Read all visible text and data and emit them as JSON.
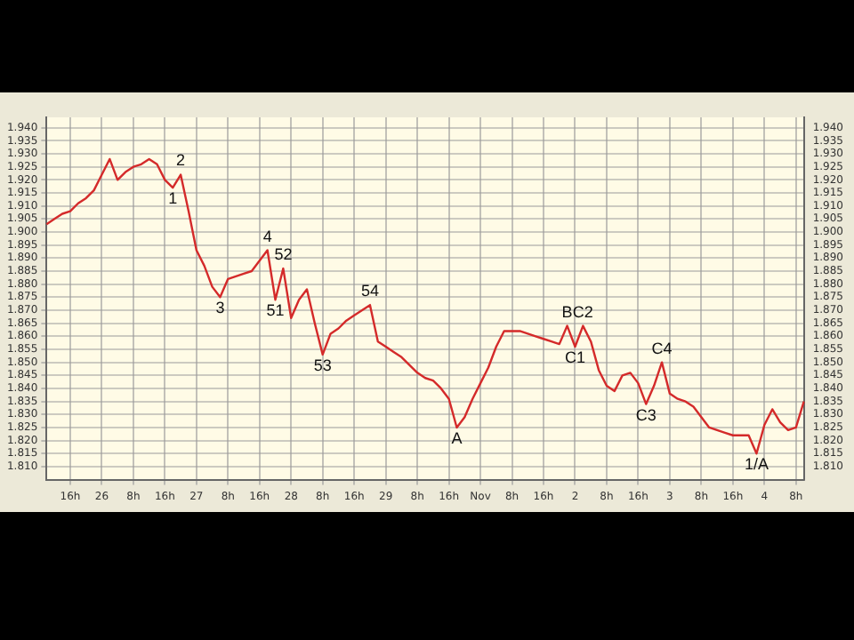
{
  "chart_data": {
    "type": "line",
    "categories": [
      null,
      null,
      null,
      "16h",
      null,
      null,
      null,
      "26",
      null,
      null,
      null,
      "8h",
      null,
      null,
      null,
      "16h",
      null,
      null,
      null,
      "27",
      null,
      null,
      null,
      "8h",
      null,
      null,
      null,
      "16h",
      null,
      null,
      null,
      "28",
      null,
      null,
      null,
      "8h",
      null,
      null,
      null,
      "16h",
      null,
      null,
      null,
      "29",
      null,
      null,
      null,
      "8h",
      null,
      null,
      null,
      "16h",
      null,
      null,
      null,
      "Nov",
      null,
      null,
      null,
      "8h",
      null,
      null,
      null,
      "16h",
      null,
      null,
      null,
      "2",
      null,
      null,
      null,
      "8h",
      null,
      null,
      null,
      "16h",
      null,
      null,
      null,
      "3",
      null,
      null,
      null,
      "8h",
      null,
      null,
      null,
      "16h",
      null,
      null,
      null,
      "4",
      null,
      null,
      null,
      "8h",
      null
    ],
    "series": [
      {
        "color": "#d42a2a",
        "values": [
          1.903,
          1.905,
          1.907,
          1.908,
          1.911,
          1.913,
          1.916,
          1.922,
          1.928,
          1.92,
          1.923,
          1.925,
          1.926,
          1.928,
          1.926,
          1.92,
          1.917,
          1.922,
          1.908,
          1.893,
          1.887,
          1.879,
          1.875,
          1.882,
          1.883,
          1.884,
          1.885,
          1.889,
          1.893,
          1.874,
          1.886,
          1.867,
          1.874,
          1.878,
          1.865,
          1.853,
          1.861,
          1.863,
          1.866,
          1.868,
          1.87,
          1.872,
          1.858,
          1.856,
          1.854,
          1.852,
          1.849,
          1.846,
          1.844,
          1.843,
          1.84,
          1.836,
          1.825,
          1.829,
          1.836,
          1.842,
          1.848,
          1.856,
          1.862,
          1.862,
          1.862,
          1.861,
          1.86,
          1.859,
          1.858,
          1.857,
          1.864,
          1.856,
          1.864,
          1.858,
          1.847,
          1.841,
          1.839,
          1.845,
          1.846,
          1.842,
          1.834,
          1.841,
          1.85,
          1.838,
          1.836,
          1.835,
          1.833,
          1.829,
          1.825,
          1.824,
          1.823,
          1.822,
          1.822,
          1.822,
          1.815,
          1.826,
          1.832,
          1.827,
          1.824,
          1.825,
          1.835
        ]
      }
    ],
    "ylim": [
      1.805,
      1.944
    ],
    "yticks": [
      {
        "value": 1.94,
        "label": "1.940"
      },
      {
        "value": 1.935,
        "label": "1.935"
      },
      {
        "value": 1.93,
        "label": "1.930"
      },
      {
        "value": 1.925,
        "label": "1.925"
      },
      {
        "value": 1.92,
        "label": "1.920"
      },
      {
        "value": 1.915,
        "label": "1.915"
      },
      {
        "value": 1.91,
        "label": "1.910"
      },
      {
        "value": 1.905,
        "label": "1.905"
      },
      {
        "value": 1.9,
        "label": "1.900"
      },
      {
        "value": 1.895,
        "label": "1.895"
      },
      {
        "value": 1.89,
        "label": "1.890"
      },
      {
        "value": 1.885,
        "label": "1.885"
      },
      {
        "value": 1.88,
        "label": "1.880"
      },
      {
        "value": 1.875,
        "label": "1.875"
      },
      {
        "value": 1.87,
        "label": "1.870"
      },
      {
        "value": 1.865,
        "label": "1.865"
      },
      {
        "value": 1.86,
        "label": "1.860"
      },
      {
        "value": 1.855,
        "label": "1.855"
      },
      {
        "value": 1.85,
        "label": "1.850"
      },
      {
        "value": 1.845,
        "label": "1.845"
      },
      {
        "value": 1.84,
        "label": "1.840"
      },
      {
        "value": 1.835,
        "label": "1.835"
      },
      {
        "value": 1.83,
        "label": "1.830"
      },
      {
        "value": 1.825,
        "label": "1.825"
      },
      {
        "value": 1.82,
        "label": "1.820"
      },
      {
        "value": 1.815,
        "label": "1.815"
      },
      {
        "value": 1.81,
        "label": "1.810"
      }
    ],
    "y2lim": [
      1.805,
      1.944
    ],
    "y2ticks": [
      {
        "value": 1.94,
        "label": "1.940"
      },
      {
        "value": 1.935,
        "label": "1.935"
      },
      {
        "value": 1.93,
        "label": "1.930"
      },
      {
        "value": 1.925,
        "label": "1.925"
      },
      {
        "value": 1.92,
        "label": "1.920"
      },
      {
        "value": 1.915,
        "label": "1.915"
      },
      {
        "value": 1.91,
        "label": "1.910"
      },
      {
        "value": 1.905,
        "label": "1.905"
      },
      {
        "value": 1.9,
        "label": "1.900"
      },
      {
        "value": 1.895,
        "label": "1.895"
      },
      {
        "value": 1.89,
        "label": "1.890"
      },
      {
        "value": 1.885,
        "label": "1.885"
      },
      {
        "value": 1.88,
        "label": "1.880"
      },
      {
        "value": 1.875,
        "label": "1.875"
      },
      {
        "value": 1.87,
        "label": "1.870"
      },
      {
        "value": 1.865,
        "label": "1.865"
      },
      {
        "value": 1.86,
        "label": "1.860"
      },
      {
        "value": 1.855,
        "label": "1.855"
      },
      {
        "value": 1.85,
        "label": "1.850"
      },
      {
        "value": 1.845,
        "label": "1.845"
      },
      {
        "value": 1.84,
        "label": "1.840"
      },
      {
        "value": 1.835,
        "label": "1.835"
      },
      {
        "value": 1.83,
        "label": "1.830"
      },
      {
        "value": 1.825,
        "label": "1.825"
      },
      {
        "value": 1.82,
        "label": "1.820"
      },
      {
        "value": 1.815,
        "label": "1.815"
      },
      {
        "value": 1.81,
        "label": "1.810"
      }
    ],
    "annotations": [
      {
        "text": "1",
        "y": 1.917
      },
      {
        "text": "2",
        "y": 1.922
      },
      {
        "text": "3",
        "y": 1.875
      },
      {
        "text": "4",
        "y": 1.893
      },
      {
        "text": "51",
        "y": 1.874
      },
      {
        "text": "52",
        "y": 1.886
      },
      {
        "text": "53",
        "y": 1.853
      },
      {
        "text": "54",
        "y": 1.872
      },
      {
        "text": "A",
        "y": 1.825
      },
      {
        "text": "B",
        "y": 1.864
      },
      {
        "text": "C1",
        "y": 1.856
      },
      {
        "text": "C2",
        "y": 1.864
      },
      {
        "text": "C3",
        "y": 1.834
      },
      {
        "text": "C4",
        "y": 1.85
      },
      {
        "text": "1/A",
        "y": 1.815
      }
    ],
    "grid": true,
    "legend": false,
    "marker": "none",
    "line_style": "solid"
  }
}
